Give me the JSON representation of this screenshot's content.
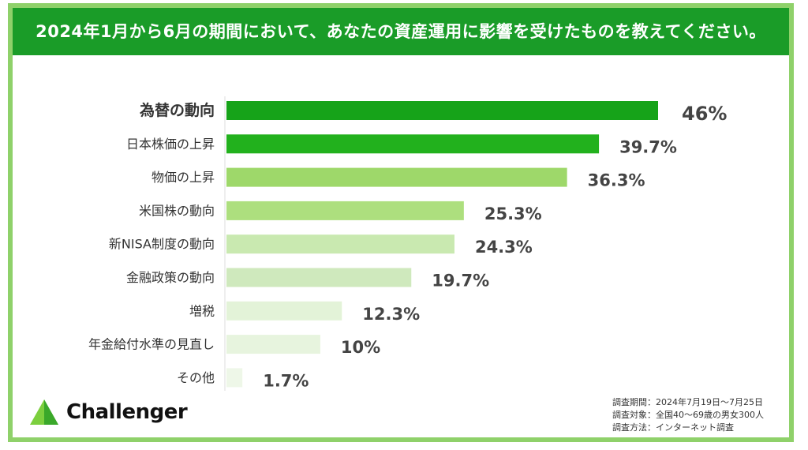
{
  "title": "2024年1月から6月の期間において、あなたの資産運用に影響を受けたものを教えてください。",
  "chart_data": {
    "type": "bar",
    "orientation": "horizontal",
    "categories": [
      "為替の動向",
      "日本株価の上昇",
      "物価の上昇",
      "米国株の動向",
      "新NISA制度の動向",
      "金融政策の動向",
      "増税",
      "年金給付水準の見直し",
      "その他"
    ],
    "values": [
      46,
      39.7,
      36.3,
      25.3,
      24.3,
      19.7,
      12.3,
      10,
      1.7
    ],
    "value_labels": [
      "46%",
      "39.7%",
      "36.3%",
      "25.3%",
      "24.3%",
      "19.7%",
      "12.3%",
      "10%",
      "1.7%"
    ],
    "unit": "%",
    "highlight_index": 0,
    "colors": [
      "#16a319",
      "#22b11d",
      "#9ed86a",
      "#addf7e",
      "#c9e9b0",
      "#cfe9bd",
      "#e3f3d8",
      "#e7f4de",
      "#eef7e8"
    ],
    "highlight_color": "#1a9c28"
  },
  "logo": {
    "name": "Challenger",
    "icon": "triangle-logo-icon"
  },
  "survey_notes": [
    "調査期間：2024年7月19日〜7月25日",
    "調査対象：全国40〜69歳の男女300人",
    "調査方法：インターネット調査"
  ]
}
